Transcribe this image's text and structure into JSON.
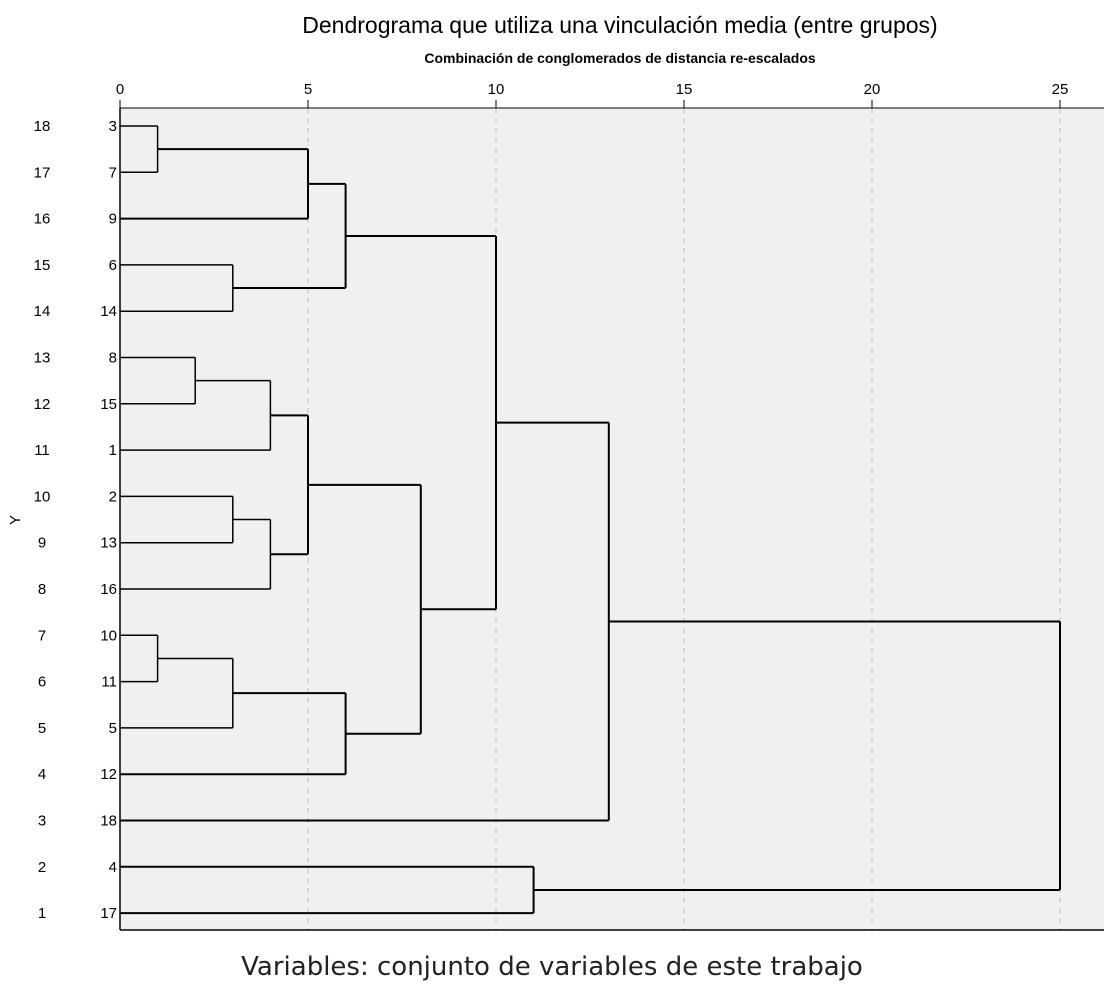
{
  "chart_data": {
    "type": "dendrogram",
    "title": "Dendrograma que utiliza una vinculación media (entre grupos)",
    "xlabel": "Combinación de conglomerados de distancia re-escalados",
    "ylabel": "Y",
    "xlim": [
      0,
      25
    ],
    "x_ticks": [
      0,
      5,
      10,
      15,
      20,
      25
    ],
    "grid": "vertical dashed",
    "leaf_order": [
      3,
      7,
      9,
      6,
      14,
      8,
      15,
      1,
      2,
      13,
      16,
      10,
      11,
      5,
      12,
      18,
      4,
      17
    ],
    "row_numbers": [
      18,
      17,
      16,
      15,
      14,
      13,
      12,
      11,
      10,
      9,
      8,
      7,
      6,
      5,
      4,
      3,
      2,
      1
    ],
    "merges": [
      {
        "left": "3",
        "right": "7",
        "height": 1
      },
      {
        "left": "10",
        "right": "11",
        "height": 1
      },
      {
        "left": "8",
        "right": "15",
        "height": 2
      },
      {
        "left": "6",
        "right": "14",
        "height": 3
      },
      {
        "left": "2",
        "right": "13",
        "height": 3
      },
      {
        "left": "{10,11}",
        "right": "5",
        "height": 3
      },
      {
        "left": "{8,15}",
        "right": "1",
        "height": 4
      },
      {
        "left": "{2,13}",
        "right": "16",
        "height": 4
      },
      {
        "left": "{3,7}",
        "right": "9",
        "height": 5
      },
      {
        "left": "{8,15,1}",
        "right": "{2,13,16}",
        "height": 5
      },
      {
        "left": "{3,7,9}",
        "right": "{6,14}",
        "height": 6
      },
      {
        "left": "{10,11,5}",
        "right": "12",
        "height": 6
      },
      {
        "left": "{8,15,1,2,13,16}",
        "right": "{10,11,5,12}",
        "height": 8
      },
      {
        "left": "{3,7,9,6,14}",
        "right": "{8,15,1,2,13,16,10,11,5,12}",
        "height": 10
      },
      {
        "left": "4",
        "right": "17",
        "height": 11
      },
      {
        "left": "{3,7,9,6,14,8,15,1,2,13,16,10,11,5,12}",
        "right": "18",
        "height": 13
      },
      {
        "left": "{... ,18}",
        "right": "{4,17}",
        "height": 25
      }
    ]
  },
  "footer": {
    "caption": "Variables: conjunto de variables de este trabajo"
  },
  "colors": {
    "plot_bg": "#f0f0f0",
    "line": "#000000",
    "grid": "#c0c0c0"
  }
}
